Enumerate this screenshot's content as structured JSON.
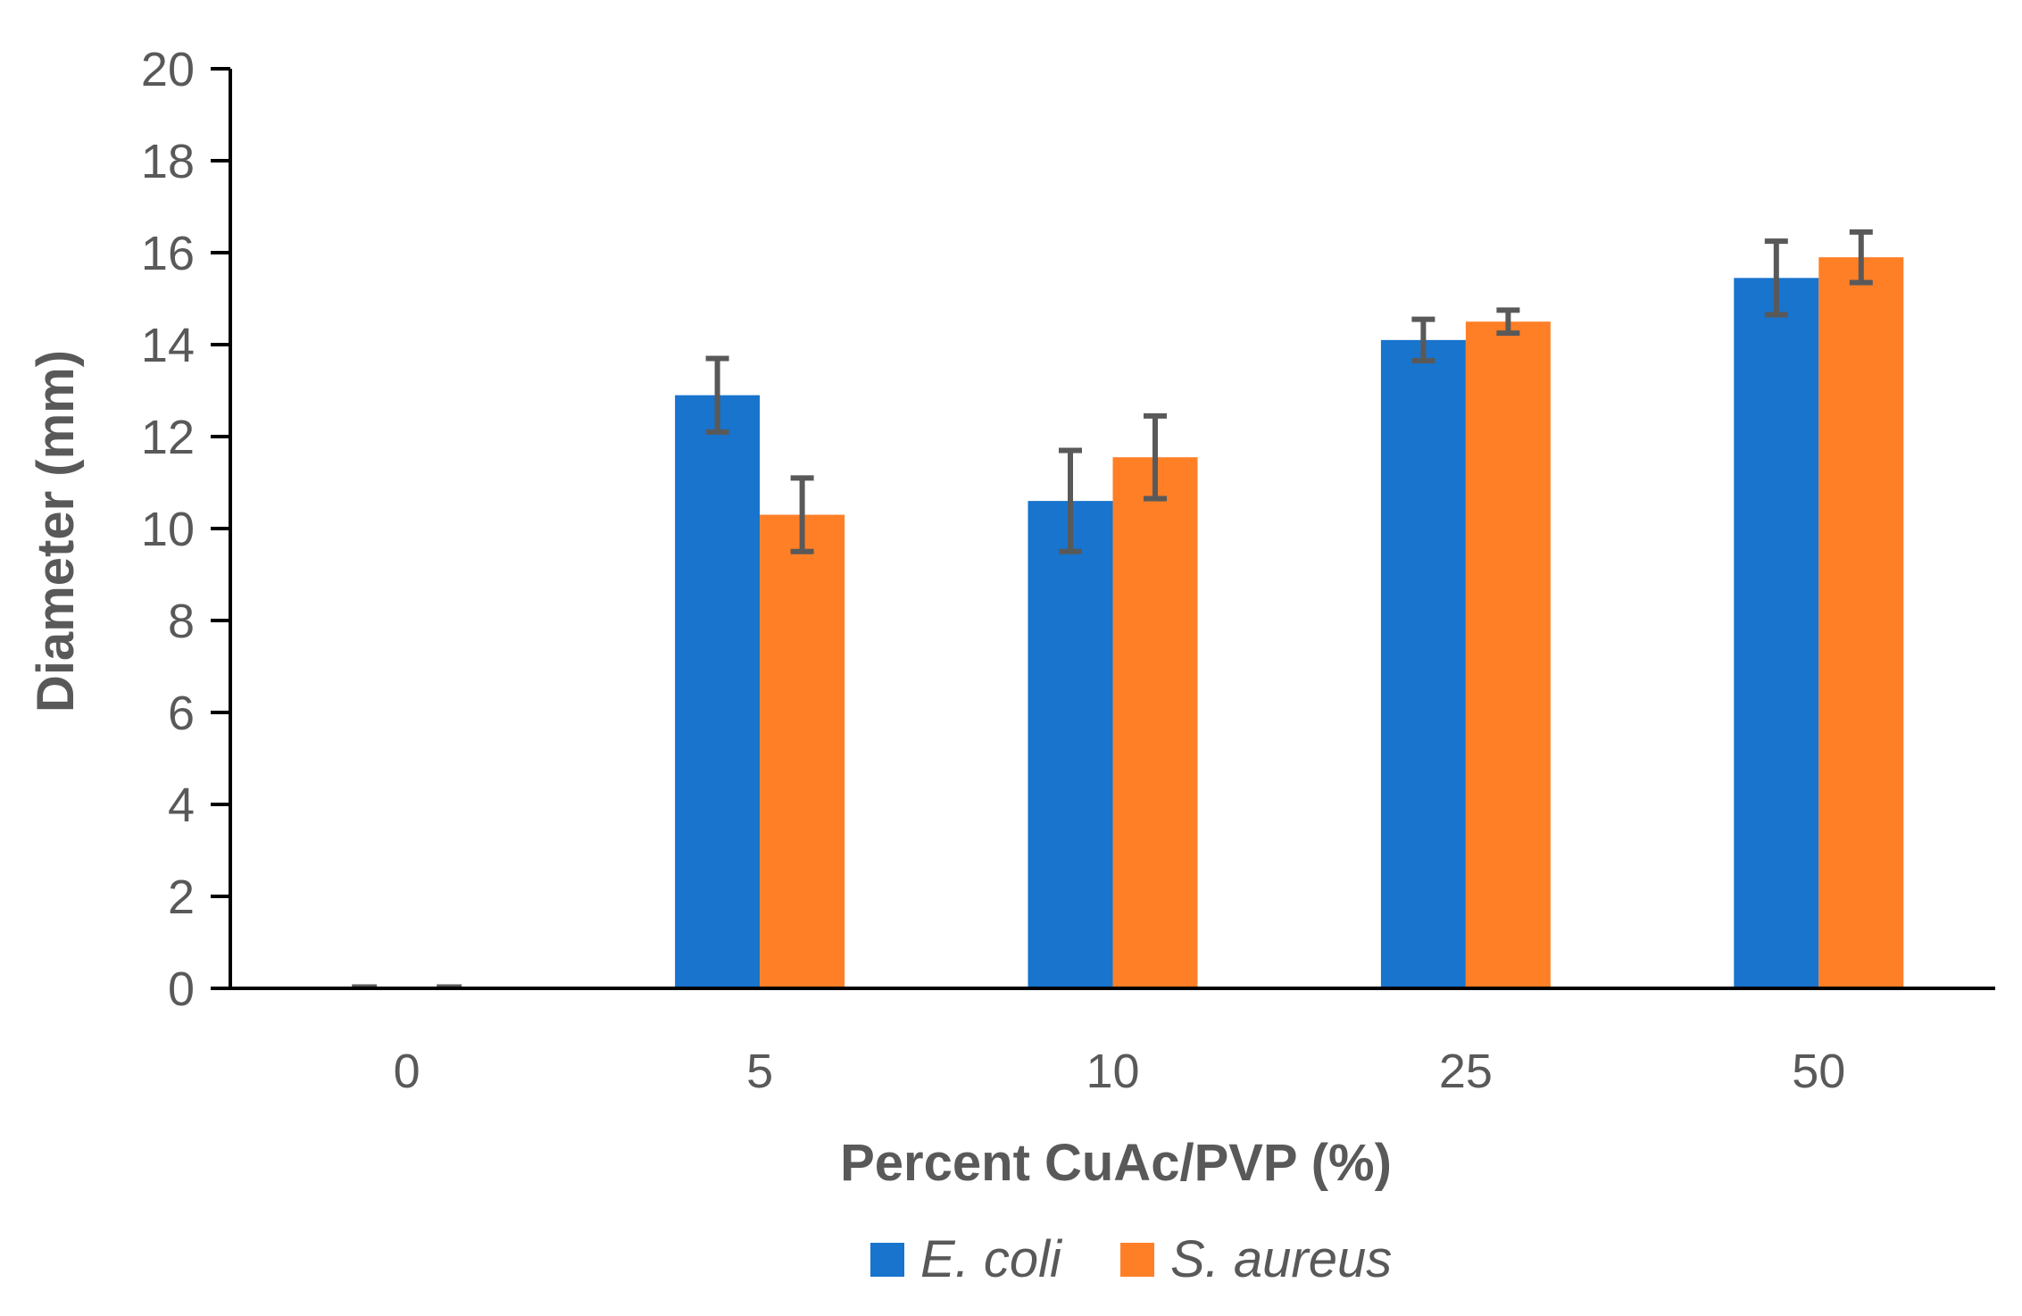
{
  "chart_data": {
    "type": "bar",
    "title": "",
    "xlabel": "Percent CuAc/PVP (%)",
    "ylabel": "Diameter (mm)",
    "categories": [
      "0",
      "5",
      "10",
      "25",
      "50"
    ],
    "ylim": [
      0,
      20
    ],
    "yticks": [
      0,
      2,
      4,
      6,
      8,
      10,
      12,
      14,
      16,
      18,
      20
    ],
    "grid": false,
    "legend_position": "bottom",
    "series": [
      {
        "name": "E. coli",
        "color": "#1874CD",
        "values": [
          0,
          12.9,
          10.6,
          14.1,
          15.45
        ],
        "errors": [
          0,
          0.8,
          1.1,
          0.45,
          0.8
        ]
      },
      {
        "name": "S. aureus",
        "color": "#FF7F27",
        "values": [
          0,
          10.3,
          11.55,
          14.5,
          15.9
        ],
        "errors": [
          0,
          0.8,
          0.9,
          0.25,
          0.55
        ]
      }
    ]
  }
}
